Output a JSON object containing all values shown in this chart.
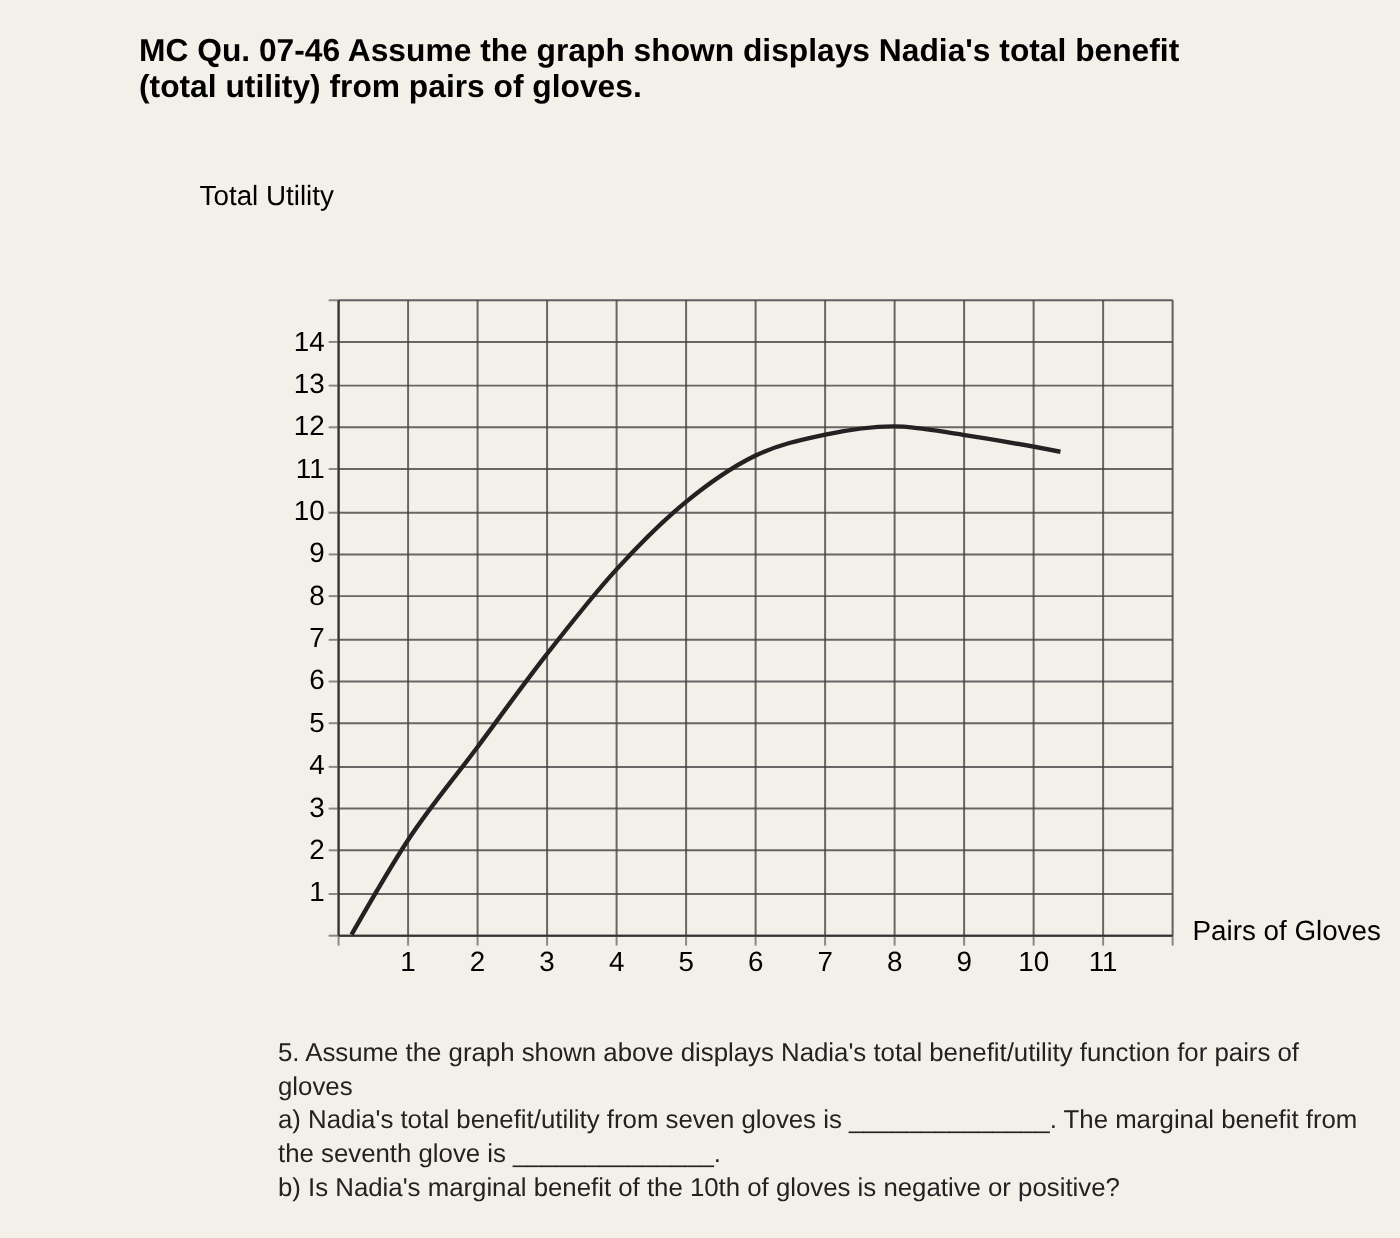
{
  "chart_data": {
    "type": "line",
    "title": "MC Qu. 07-46 Assume the graph shown displays Nadia's total benefit (total utility) from pairs of gloves.",
    "xlabel": "Pairs of Gloves",
    "ylabel": "Total Utility",
    "series": [
      {
        "color": "#222222",
        "x": [
          0.2,
          1,
          2,
          3,
          4,
          5,
          6,
          7,
          8,
          9,
          10.4
        ],
        "values": [
          0,
          2.2,
          4.4,
          6.6,
          8.6,
          10.2,
          11.3,
          11.8,
          12,
          11.8,
          11.4
        ]
      }
    ],
    "xlim": [
      0,
      12
    ],
    "xticks": [
      {
        "value": 0,
        "label": null
      },
      1,
      2,
      3,
      4,
      5,
      6,
      7,
      8,
      9,
      10,
      11,
      {
        "value": 12,
        "label": null
      }
    ],
    "ylim": [
      0,
      15
    ],
    "yticks": [
      {
        "value": 0,
        "label": null
      },
      1,
      2,
      3,
      4,
      5,
      6,
      7,
      8,
      9,
      10,
      11,
      12,
      13,
      14,
      {
        "value": 15,
        "label": null
      }
    ],
    "grid": true,
    "marker": "none",
    "line_style": "solid",
    "annotations": [
      "5. Assume the graph shown above displays Nadia's total benefit/utility function for pairs of gloves",
      "a) Nadia's total benefit/utility from seven gloves is ______________. The marginal benefit from the seventh glove is ______________.",
      "b) Is Nadia's marginal benefit of the 10th of gloves is negative or positive?"
    ]
  }
}
